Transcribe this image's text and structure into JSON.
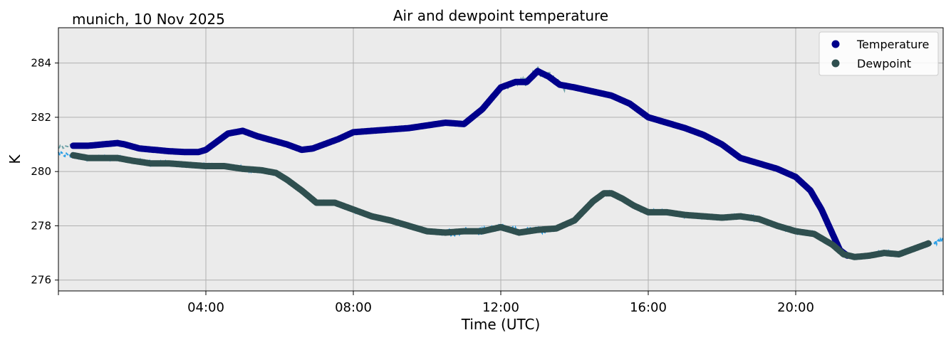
{
  "chart_data": {
    "type": "line",
    "title": "Air and dewpoint temperature",
    "location_label": "munich, 10 Nov 2025",
    "xlabel": "Time (UTC)",
    "ylabel": "K",
    "x_unit": "hours UTC",
    "xlim": [
      0.0,
      24.0
    ],
    "ylim": [
      275.6,
      285.3
    ],
    "xticks": [
      4,
      8,
      12,
      16,
      20
    ],
    "xtick_labels": [
      "04:00",
      "08:00",
      "12:00",
      "16:00",
      "20:00"
    ],
    "yticks": [
      276,
      278,
      280,
      282,
      284
    ],
    "ytick_labels": [
      "276",
      "278",
      "280",
      "282",
      "284"
    ],
    "grid": true,
    "legend_position": "top-right",
    "legend": [
      "Temperature",
      "Dewpoint"
    ],
    "colors": {
      "temperature": "#00008b",
      "dewpoint": "#2f4f4f",
      "temperature_raw": "#6fa3a8",
      "dewpoint_raw": "#2b9fe6",
      "plot_bg": "#ebebeb",
      "grid": "#b0b0b0"
    },
    "series": [
      {
        "name": "Temperature",
        "x": [
          0.0,
          0.4,
          0.8,
          1.2,
          1.6,
          1.8,
          2.2,
          2.6,
          3.0,
          3.4,
          3.8,
          4.0,
          4.3,
          4.6,
          5.0,
          5.4,
          5.8,
          6.2,
          6.6,
          6.9,
          7.2,
          7.6,
          8.0,
          8.5,
          9.0,
          9.5,
          10.0,
          10.5,
          11.0,
          11.5,
          12.0,
          12.4,
          12.7,
          13.0,
          13.3,
          13.6,
          14.0,
          14.5,
          15.0,
          15.5,
          16.0,
          16.5,
          17.0,
          17.5,
          18.0,
          18.5,
          19.0,
          19.5,
          20.0,
          20.4,
          20.7,
          21.0,
          21.2,
          21.4
        ],
        "values": [
          280.9,
          280.95,
          280.95,
          281.0,
          281.05,
          281.0,
          280.85,
          280.8,
          280.75,
          280.72,
          280.72,
          280.8,
          281.1,
          281.4,
          281.5,
          281.3,
          281.15,
          281.0,
          280.8,
          280.85,
          281.0,
          281.2,
          281.45,
          281.5,
          281.55,
          281.6,
          281.7,
          281.8,
          281.75,
          282.3,
          283.1,
          283.3,
          283.3,
          283.7,
          283.5,
          283.2,
          283.1,
          282.95,
          282.8,
          282.5,
          282.0,
          281.8,
          281.6,
          281.35,
          281.0,
          280.5,
          280.3,
          280.1,
          279.8,
          279.3,
          278.6,
          277.7,
          277.1,
          276.9
        ]
      },
      {
        "name": "Dewpoint",
        "x": [
          0.0,
          0.4,
          0.8,
          1.2,
          1.6,
          2.0,
          2.5,
          3.0,
          3.5,
          4.0,
          4.5,
          5.0,
          5.5,
          5.9,
          6.2,
          6.6,
          7.0,
          7.5,
          8.0,
          8.5,
          9.0,
          9.5,
          10.0,
          10.5,
          11.0,
          11.5,
          12.0,
          12.5,
          13.0,
          13.5,
          14.0,
          14.5,
          14.8,
          15.0,
          15.3,
          15.6,
          16.0,
          16.5,
          17.0,
          17.5,
          18.0,
          18.5,
          19.0,
          19.5,
          20.0,
          20.5,
          21.0,
          21.3,
          21.6,
          22.0,
          22.4,
          22.8,
          23.2,
          23.6,
          24.0
        ],
        "values": [
          280.65,
          280.6,
          280.5,
          280.5,
          280.5,
          280.4,
          280.3,
          280.3,
          280.25,
          280.2,
          280.2,
          280.1,
          280.05,
          279.95,
          279.7,
          279.3,
          278.85,
          278.85,
          278.6,
          278.35,
          278.2,
          278.0,
          277.8,
          277.75,
          277.8,
          277.8,
          277.95,
          277.75,
          277.85,
          277.9,
          278.2,
          278.9,
          279.2,
          279.2,
          279.0,
          278.75,
          278.5,
          278.5,
          278.4,
          278.35,
          278.3,
          278.35,
          278.25,
          278.0,
          277.8,
          277.7,
          277.3,
          276.95,
          276.85,
          276.9,
          277.0,
          276.95,
          277.15,
          277.35,
          277.45
        ]
      }
    ]
  }
}
